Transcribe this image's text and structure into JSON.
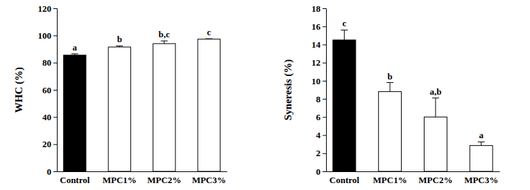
{
  "chart_data": [
    {
      "type": "bar",
      "y_label": "WHC (%)",
      "categories": [
        "Control",
        "MPC1%",
        "MPC2%",
        "MPC3%"
      ],
      "values": [
        85.5,
        91.5,
        94,
        97.3
      ],
      "errors": [
        1.0,
        0.8,
        2.0,
        0.3
      ],
      "annotations": [
        "a",
        "b",
        "b,c",
        "c"
      ],
      "colors": [
        "#000000",
        "#ffffff",
        "#ffffff",
        "#ffffff"
      ],
      "ylim": [
        0,
        120
      ],
      "yticks": [
        0,
        20,
        40,
        60,
        80,
        100,
        120
      ],
      "grid": false
    },
    {
      "type": "bar",
      "y_label": "Syneresis (%)",
      "categories": [
        "Control",
        "MPC1%",
        "MPC2%",
        "MPC3%"
      ],
      "values": [
        14.5,
        8.8,
        6.0,
        2.85
      ],
      "errors": [
        1.1,
        1.0,
        2.1,
        0.4
      ],
      "annotations": [
        "c",
        "b",
        "a,b",
        "a"
      ],
      "colors": [
        "#000000",
        "#ffffff",
        "#ffffff",
        "#ffffff"
      ],
      "ylim": [
        0,
        18
      ],
      "yticks": [
        0,
        2,
        4,
        6,
        8,
        10,
        12,
        14,
        16,
        18
      ],
      "grid": false
    }
  ]
}
